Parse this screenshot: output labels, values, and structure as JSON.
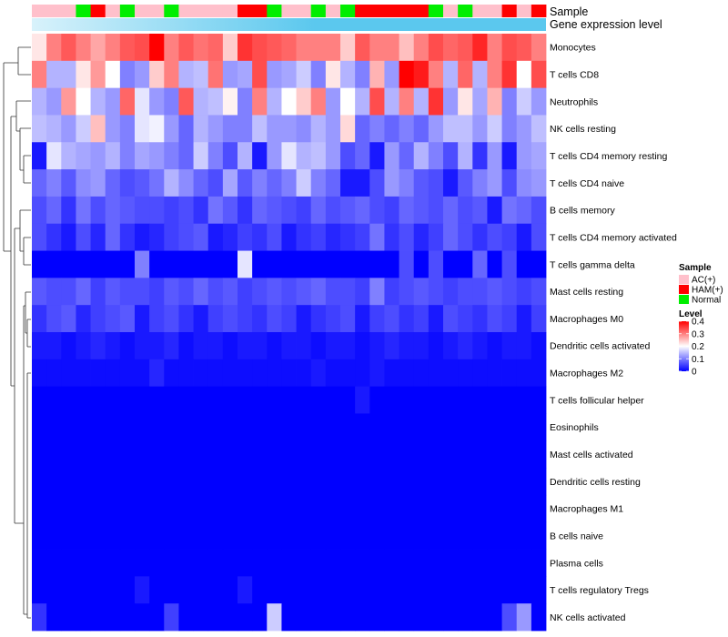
{
  "chart_data": {
    "type": "heatmap",
    "annotation_labels": {
      "sample": "Sample",
      "gene": "Gene expression level"
    },
    "rows": [
      "Monocytes",
      "T cells CD8",
      "Neutrophils",
      "NK cells resting",
      "T cells CD4 memory resting",
      "T cells CD4 naive",
      "B cells memory",
      "T cells CD4 memory activated",
      "T cells gamma delta",
      "Mast cells resting",
      "Macrophages M0",
      "Dendritic cells activated",
      "Macrophages M2",
      "T cells follicular helper",
      "Eosinophils",
      "Mast cells activated",
      "Dendritic cells resting",
      "Macrophages M1",
      "B cells naive",
      "Plasma cells",
      "T cells regulatory  Tregs",
      "NK cells activated"
    ],
    "sample_groups": [
      "AC(+)",
      "AC(+)",
      "AC(+)",
      "Normal",
      "HAM(+)",
      "AC(+)",
      "Normal",
      "AC(+)",
      "AC(+)",
      "Normal",
      "AC(+)",
      "AC(+)",
      "AC(+)",
      "AC(+)",
      "HAM(+)",
      "HAM(+)",
      "Normal",
      "AC(+)",
      "AC(+)",
      "Normal",
      "AC(+)",
      "Normal",
      "HAM(+)",
      "HAM(+)",
      "HAM(+)",
      "HAM(+)",
      "HAM(+)",
      "Normal",
      "AC(+)",
      "Normal",
      "AC(+)",
      "AC(+)",
      "HAM(+)",
      "AC(+)",
      "HAM(+)"
    ],
    "legend": {
      "sample_title": "Sample",
      "groups": [
        {
          "name": "AC(+)",
          "color": "#ffc0cb"
        },
        {
          "name": "HAM(+)",
          "color": "#ff0000"
        },
        {
          "name": "Normal",
          "color": "#00ee00"
        }
      ],
      "level_title": "Level",
      "ticks": [
        0.4,
        0.3,
        0.2,
        0.1,
        0
      ]
    },
    "colors": {
      "low": "#0000ff",
      "mid": "#ffffff",
      "high": "#ff0000",
      "gene_bar": "#5bc8ee",
      "gene_bar_light": "#d8f2fb"
    },
    "value_range": [
      0,
      0.4
    ],
    "values": [
      [
        0.22,
        0.3,
        0.33,
        0.3,
        0.27,
        0.3,
        0.33,
        0.34,
        0.4,
        0.3,
        0.33,
        0.31,
        0.32,
        0.24,
        0.36,
        0.34,
        0.33,
        0.32,
        0.3,
        0.3,
        0.3,
        0.24,
        0.33,
        0.3,
        0.3,
        0.25,
        0.3,
        0.34,
        0.32,
        0.33,
        0.37,
        0.3,
        0.34,
        0.33,
        0.3
      ],
      [
        0.3,
        0.14,
        0.14,
        0.22,
        0.28,
        0.2,
        0.1,
        0.12,
        0.24,
        0.3,
        0.14,
        0.15,
        0.31,
        0.12,
        0.13,
        0.34,
        0.12,
        0.13,
        0.16,
        0.1,
        0.22,
        0.14,
        0.1,
        0.26,
        0.12,
        0.4,
        0.38,
        0.3,
        0.14,
        0.32,
        0.14,
        0.3,
        0.36,
        0.2,
        0.34
      ],
      [
        0.14,
        0.12,
        0.28,
        0.2,
        0.14,
        0.12,
        0.32,
        0.18,
        0.12,
        0.1,
        0.33,
        0.14,
        0.15,
        0.21,
        0.1,
        0.3,
        0.14,
        0.2,
        0.24,
        0.3,
        0.12,
        0.2,
        0.14,
        0.34,
        0.14,
        0.3,
        0.14,
        0.36,
        0.12,
        0.22,
        0.13,
        0.26,
        0.1,
        0.16,
        0.12
      ],
      [
        0.15,
        0.14,
        0.12,
        0.16,
        0.25,
        0.12,
        0.1,
        0.18,
        0.19,
        0.12,
        0.08,
        0.14,
        0.12,
        0.1,
        0.1,
        0.15,
        0.12,
        0.12,
        0.11,
        0.14,
        0.12,
        0.23,
        0.08,
        0.1,
        0.08,
        0.1,
        0.08,
        0.12,
        0.15,
        0.15,
        0.12,
        0.16,
        0.1,
        0.12,
        0.15
      ],
      [
        0.02,
        0.18,
        0.14,
        0.13,
        0.12,
        0.14,
        0.1,
        0.13,
        0.12,
        0.1,
        0.08,
        0.16,
        0.1,
        0.06,
        0.14,
        0.02,
        0.12,
        0.18,
        0.14,
        0.15,
        0.12,
        0.06,
        0.08,
        0.02,
        0.12,
        0.08,
        0.14,
        0.1,
        0.06,
        0.14,
        0.04,
        0.12,
        0.02,
        0.12,
        0.13
      ],
      [
        0.08,
        0.1,
        0.07,
        0.11,
        0.12,
        0.08,
        0.06,
        0.07,
        0.09,
        0.14,
        0.11,
        0.08,
        0.06,
        0.13,
        0.07,
        0.1,
        0.08,
        0.1,
        0.16,
        0.1,
        0.08,
        0.02,
        0.02,
        0.06,
        0.12,
        0.1,
        0.07,
        0.06,
        0.02,
        0.07,
        0.1,
        0.12,
        0.06,
        0.11,
        0.12
      ],
      [
        0.06,
        0.08,
        0.04,
        0.09,
        0.06,
        0.08,
        0.07,
        0.06,
        0.06,
        0.05,
        0.06,
        0.04,
        0.09,
        0.07,
        0.04,
        0.08,
        0.07,
        0.06,
        0.05,
        0.08,
        0.06,
        0.07,
        0.08,
        0.06,
        0.05,
        0.08,
        0.07,
        0.06,
        0.08,
        0.06,
        0.07,
        0.02,
        0.09,
        0.08,
        0.06
      ],
      [
        0.06,
        0.04,
        0.02,
        0.06,
        0.03,
        0.08,
        0.04,
        0.02,
        0.03,
        0.05,
        0.06,
        0.07,
        0.02,
        0.03,
        0.05,
        0.04,
        0.06,
        0.02,
        0.04,
        0.05,
        0.03,
        0.04,
        0.05,
        0.09,
        0.04,
        0.06,
        0.03,
        0.05,
        0.08,
        0.06,
        0.04,
        0.06,
        0.05,
        0.02,
        0.06
      ],
      [
        0,
        0,
        0,
        0,
        0,
        0,
        0,
        0.1,
        0,
        0,
        0,
        0,
        0,
        0,
        0.18,
        0,
        0,
        0,
        0,
        0,
        0,
        0,
        0,
        0,
        0,
        0.06,
        0,
        0.06,
        0,
        0,
        0.08,
        0,
        0.06,
        0,
        0
      ],
      [
        0.07,
        0.06,
        0.06,
        0.08,
        0.05,
        0.07,
        0.06,
        0.06,
        0.05,
        0.07,
        0.06,
        0.08,
        0.06,
        0.07,
        0.05,
        0.06,
        0.07,
        0.06,
        0.07,
        0.08,
        0.06,
        0.06,
        0.05,
        0.1,
        0.05,
        0.06,
        0.07,
        0.06,
        0.05,
        0.06,
        0.06,
        0.07,
        0.06,
        0.05,
        0.06
      ],
      [
        0.04,
        0.06,
        0.07,
        0.03,
        0.05,
        0.06,
        0.07,
        0.02,
        0.05,
        0.06,
        0.04,
        0.02,
        0.05,
        0.06,
        0.05,
        0.04,
        0.06,
        0.05,
        0.02,
        0.04,
        0.05,
        0.06,
        0.02,
        0.05,
        0.06,
        0.04,
        0.05,
        0.02,
        0.06,
        0.05,
        0.04,
        0.06,
        0.05,
        0.02,
        0.05
      ],
      [
        0.02,
        0.02,
        0.01,
        0.02,
        0.03,
        0.02,
        0.01,
        0.02,
        0.02,
        0.03,
        0.01,
        0.02,
        0.02,
        0.01,
        0.02,
        0.02,
        0.01,
        0.02,
        0.02,
        0.01,
        0.02,
        0.02,
        0.01,
        0.02,
        0.03,
        0.02,
        0.02,
        0.01,
        0.02,
        0.03,
        0.02,
        0.01,
        0.02,
        0.02,
        0.01
      ],
      [
        0.01,
        0.01,
        0.01,
        0.01,
        0.01,
        0.01,
        0.01,
        0.01,
        0.03,
        0.01,
        0.01,
        0.01,
        0.01,
        0.01,
        0.01,
        0.01,
        0.01,
        0.01,
        0.01,
        0.02,
        0.01,
        0.01,
        0.01,
        0.02,
        0.01,
        0.01,
        0.01,
        0.01,
        0.01,
        0.01,
        0.01,
        0.01,
        0.01,
        0.01,
        0.01
      ],
      [
        0,
        0,
        0,
        0,
        0,
        0,
        0,
        0,
        0,
        0,
        0,
        0,
        0,
        0,
        0,
        0,
        0,
        0,
        0,
        0,
        0,
        0,
        0.02,
        0,
        0,
        0,
        0,
        0,
        0,
        0,
        0,
        0,
        0,
        0,
        0
      ],
      [
        0,
        0,
        0,
        0,
        0,
        0,
        0,
        0,
        0,
        0,
        0,
        0,
        0,
        0,
        0,
        0,
        0,
        0,
        0,
        0,
        0,
        0,
        0,
        0,
        0,
        0,
        0,
        0,
        0,
        0,
        0,
        0,
        0,
        0,
        0
      ],
      [
        0,
        0,
        0,
        0,
        0,
        0,
        0,
        0,
        0,
        0,
        0,
        0,
        0,
        0,
        0,
        0,
        0,
        0,
        0,
        0,
        0,
        0,
        0,
        0,
        0,
        0,
        0,
        0,
        0,
        0,
        0,
        0,
        0,
        0,
        0
      ],
      [
        0,
        0,
        0,
        0,
        0,
        0,
        0,
        0,
        0,
        0,
        0,
        0,
        0,
        0,
        0,
        0,
        0,
        0,
        0,
        0,
        0,
        0,
        0,
        0,
        0,
        0,
        0,
        0,
        0,
        0,
        0,
        0,
        0,
        0,
        0
      ],
      [
        0,
        0,
        0,
        0,
        0,
        0,
        0,
        0,
        0,
        0,
        0,
        0,
        0,
        0,
        0,
        0,
        0,
        0,
        0,
        0,
        0,
        0,
        0,
        0,
        0,
        0,
        0,
        0,
        0,
        0,
        0,
        0,
        0,
        0,
        0
      ],
      [
        0,
        0,
        0,
        0,
        0,
        0,
        0,
        0,
        0,
        0,
        0,
        0,
        0,
        0,
        0,
        0,
        0,
        0,
        0,
        0,
        0,
        0,
        0,
        0,
        0,
        0,
        0,
        0,
        0,
        0,
        0,
        0,
        0,
        0,
        0
      ],
      [
        0,
        0,
        0,
        0,
        0,
        0,
        0,
        0,
        0,
        0,
        0,
        0,
        0,
        0,
        0,
        0,
        0,
        0,
        0,
        0,
        0,
        0,
        0,
        0,
        0,
        0,
        0,
        0,
        0,
        0,
        0,
        0,
        0,
        0,
        0
      ],
      [
        0,
        0,
        0,
        0,
        0,
        0,
        0,
        0.02,
        0,
        0,
        0,
        0,
        0,
        0,
        0.02,
        0,
        0,
        0,
        0,
        0,
        0,
        0,
        0,
        0,
        0,
        0,
        0,
        0,
        0,
        0,
        0,
        0,
        0,
        0,
        0
      ],
      [
        0.04,
        0,
        0,
        0,
        0,
        0,
        0,
        0,
        0,
        0.05,
        0,
        0,
        0,
        0,
        0,
        0,
        0.16,
        0,
        0,
        0,
        0,
        0,
        0,
        0,
        0,
        0,
        0,
        0,
        0,
        0,
        0,
        0,
        0.06,
        0.12,
        0
      ]
    ]
  }
}
